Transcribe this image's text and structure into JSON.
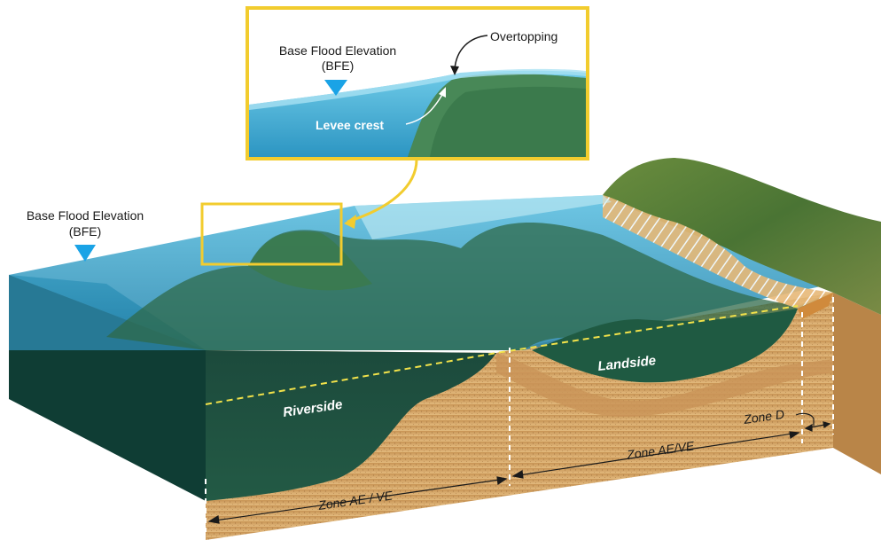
{
  "callout": {
    "bfe_title": "Base Flood Elevation",
    "bfe_abbr": "(BFE)",
    "overtopping": "Overtopping",
    "levee_crest": "Levee crest"
  },
  "main": {
    "bfe_title": "Base Flood Elevation",
    "bfe_abbr": "(BFE)",
    "riverside": "Riverside",
    "landside": "Landside",
    "zone_left": "Zone AE / VE",
    "zone_right": "Zone AE/VE",
    "zone_d": "Zone D"
  },
  "colors": {
    "callout_border": "#f2cc2e",
    "water": "#3aa6d0",
    "bfe_marker": "#1aa3e6",
    "soil": "#d9ad6f",
    "vegetation": "#3d6a35"
  }
}
